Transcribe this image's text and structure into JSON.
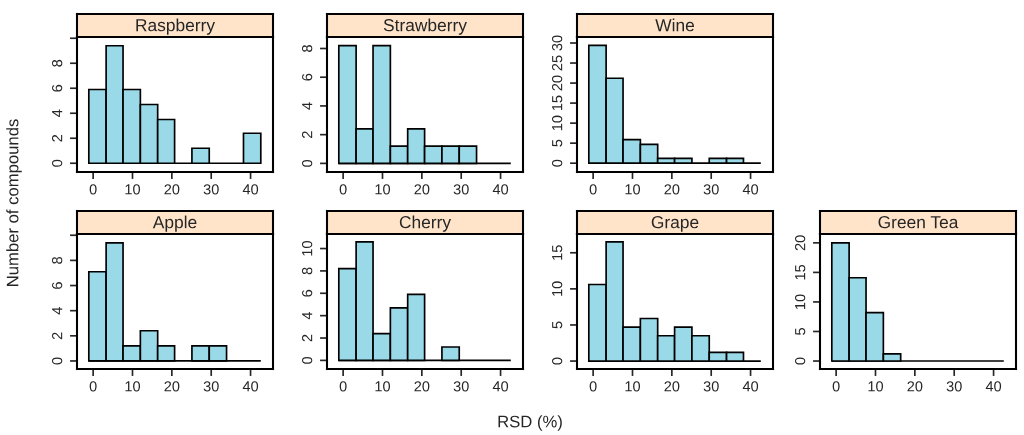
{
  "chart_data": [
    {
      "type": "histogram",
      "title": "Raspberry",
      "ylabel": "Number of compounds",
      "color": "#99d9e8",
      "bins": [
        -1.1,
        3.3,
        7.6,
        12.0,
        16.4,
        20.7,
        25.1,
        29.5,
        33.9,
        38.2,
        42.6
      ],
      "values": [
        5.9,
        9.4,
        5.9,
        4.7,
        3.5,
        0,
        1.2,
        0,
        0,
        2.4
      ],
      "xlim": [
        -4.1,
        45.7
      ],
      "xticks": [
        0,
        10,
        20,
        30,
        40
      ],
      "ylim": [
        -0.7,
        10.1
      ],
      "yticks": [
        0,
        2,
        4,
        6,
        8,
        {
          "value": 10,
          "label": null
        }
      ]
    },
    {
      "type": "histogram",
      "title": "Strawberry",
      "color": "#99d9e8",
      "bins": [
        -1.1,
        3.3,
        7.6,
        12.0,
        16.4,
        20.7,
        25.1,
        29.5,
        33.9,
        38.2,
        42.6
      ],
      "values": [
        8.2,
        2.4,
        8.2,
        1.2,
        2.4,
        1.2,
        1.2,
        1.2,
        0,
        0
      ],
      "xlim": [
        -4.1,
        45.7
      ],
      "xticks": [
        0,
        10,
        20,
        30,
        40
      ],
      "ylim": [
        -0.6,
        8.8
      ],
      "yticks": [
        0,
        2,
        4,
        6,
        8
      ]
    },
    {
      "type": "histogram",
      "title": "Wine",
      "color": "#99d9e8",
      "bins": [
        -1.1,
        3.3,
        7.6,
        12.0,
        16.4,
        20.7,
        25.1,
        29.5,
        33.9,
        38.2,
        42.6
      ],
      "values": [
        29.4,
        21.2,
        5.9,
        4.7,
        1.2,
        1.2,
        0,
        1.2,
        1.2,
        0
      ],
      "xlim": [
        -4.1,
        45.7
      ],
      "xticks": [
        0,
        10,
        20,
        30,
        40
      ],
      "ylim": [
        -2.2,
        31.5
      ],
      "yticks": [
        0,
        5,
        10,
        15,
        20,
        25,
        30
      ]
    },
    {
      "type": "histogram",
      "title": "Apple",
      "color": "#99d9e8",
      "bins": [
        -1.1,
        3.3,
        7.6,
        12.0,
        16.4,
        20.7,
        25.1,
        29.5,
        33.9,
        38.2,
        42.6
      ],
      "values": [
        7.1,
        9.4,
        1.2,
        2.4,
        1.2,
        0,
        1.2,
        1.2,
        0,
        0
      ],
      "xlim": [
        -4.1,
        45.7
      ],
      "xticks": [
        0,
        10,
        20,
        30,
        40
      ],
      "ylim": [
        -0.64,
        10.1
      ],
      "yticks": [
        0,
        2,
        4,
        6,
        8,
        {
          "value": 10,
          "label": null
        }
      ]
    },
    {
      "type": "histogram",
      "title": "Cherry",
      "xlabel": "RSD (%)",
      "color": "#99d9e8",
      "bins": [
        -1.1,
        3.3,
        7.6,
        12.0,
        16.4,
        20.7,
        25.1,
        29.5,
        33.9,
        38.2,
        42.6
      ],
      "values": [
        8.2,
        10.6,
        2.4,
        4.7,
        5.9,
        0,
        1.2,
        0,
        0,
        0
      ],
      "xlim": [
        -4.1,
        45.7
      ],
      "xticks": [
        0,
        10,
        20,
        30,
        40
      ],
      "ylim": [
        -0.77,
        11.3
      ],
      "yticks": [
        0,
        2,
        4,
        6,
        8,
        10
      ]
    },
    {
      "type": "histogram",
      "title": "Grape",
      "color": "#99d9e8",
      "bins": [
        -1.1,
        3.3,
        7.6,
        12.0,
        16.4,
        20.7,
        25.1,
        29.5,
        33.9,
        38.2,
        42.6
      ],
      "values": [
        10.6,
        16.5,
        4.7,
        5.9,
        3.5,
        4.7,
        3.5,
        1.2,
        1.2,
        0
      ],
      "xlim": [
        -4.1,
        45.7
      ],
      "xticks": [
        0,
        10,
        20,
        30,
        40
      ],
      "ylim": [
        -1.1,
        17.6
      ],
      "yticks": [
        0,
        5,
        10,
        15
      ]
    },
    {
      "type": "histogram",
      "title": "Green Tea",
      "color": "#99d9e8",
      "bins": [
        -1.1,
        3.3,
        7.6,
        12.0,
        16.4,
        20.7,
        25.1,
        29.5,
        33.9,
        38.2,
        42.6
      ],
      "values": [
        20,
        14.1,
        8.2,
        1.2,
        0,
        0,
        0,
        0,
        0,
        0
      ],
      "xlim": [
        -4.1,
        45.7
      ],
      "xticks": [
        0,
        10,
        20,
        30,
        40
      ],
      "ylim": [
        -1.35,
        21.5
      ],
      "yticks": [
        0,
        5,
        10,
        15,
        20
      ]
    }
  ]
}
